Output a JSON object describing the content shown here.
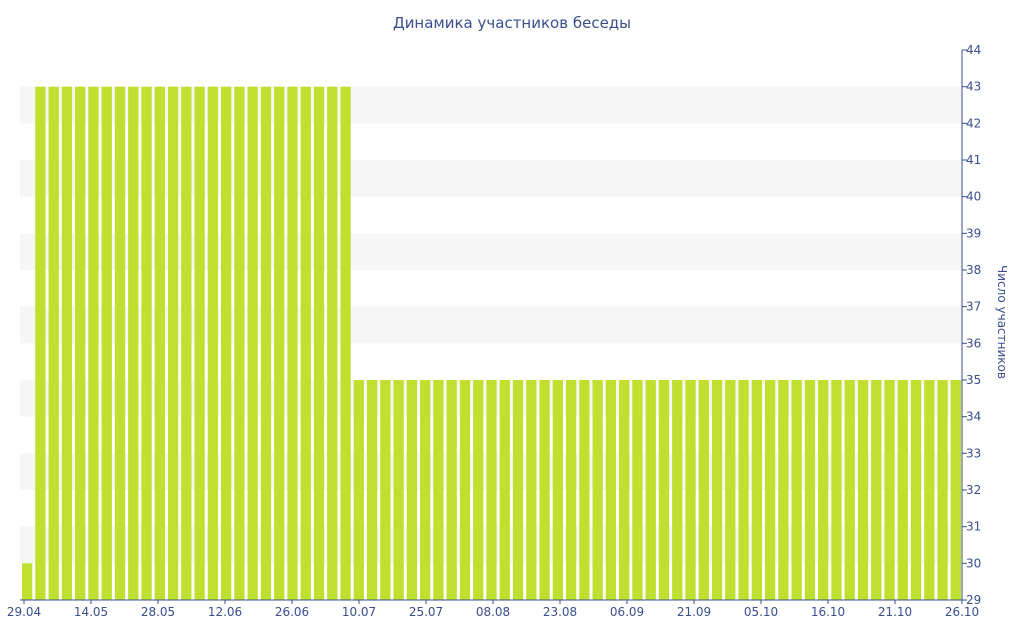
{
  "chart_data": {
    "type": "bar",
    "title": "Динамика участников беседы",
    "xlabel": "",
    "ylabel": "Число участников",
    "ylim": [
      29,
      44
    ],
    "yticks": [
      29,
      30,
      31,
      32,
      33,
      34,
      35,
      36,
      37,
      38,
      39,
      40,
      41,
      42,
      43,
      44
    ],
    "xtick_labels": [
      "29.04",
      "14.05",
      "28.05",
      "12.06",
      "26.06",
      "10.07",
      "25.07",
      "08.08",
      "23.08",
      "06.09",
      "21.09",
      "05.10",
      "16.10",
      "21.10",
      "26.10"
    ],
    "values": [
      30,
      43,
      43,
      43,
      43,
      43,
      43,
      43,
      43,
      43,
      43,
      43,
      43,
      43,
      43,
      43,
      43,
      43,
      43,
      43,
      43,
      43,
      43,
      43,
      43,
      35,
      35,
      35,
      35,
      35,
      35,
      35,
      35,
      35,
      35,
      35,
      35,
      35,
      35,
      35,
      35,
      35,
      35,
      35,
      35,
      35,
      35,
      35,
      35,
      35,
      35,
      35,
      35,
      35,
      35,
      35,
      35,
      35,
      35,
      35,
      35,
      35,
      35,
      35,
      35,
      35,
      35,
      35,
      35,
      35,
      35
    ],
    "grid": "alternating horizontal bands",
    "yaxis_position": "right",
    "colors": {
      "bar": "#bfe02f",
      "band": "#f6f6f6",
      "axis": "#3a4f8f"
    }
  }
}
